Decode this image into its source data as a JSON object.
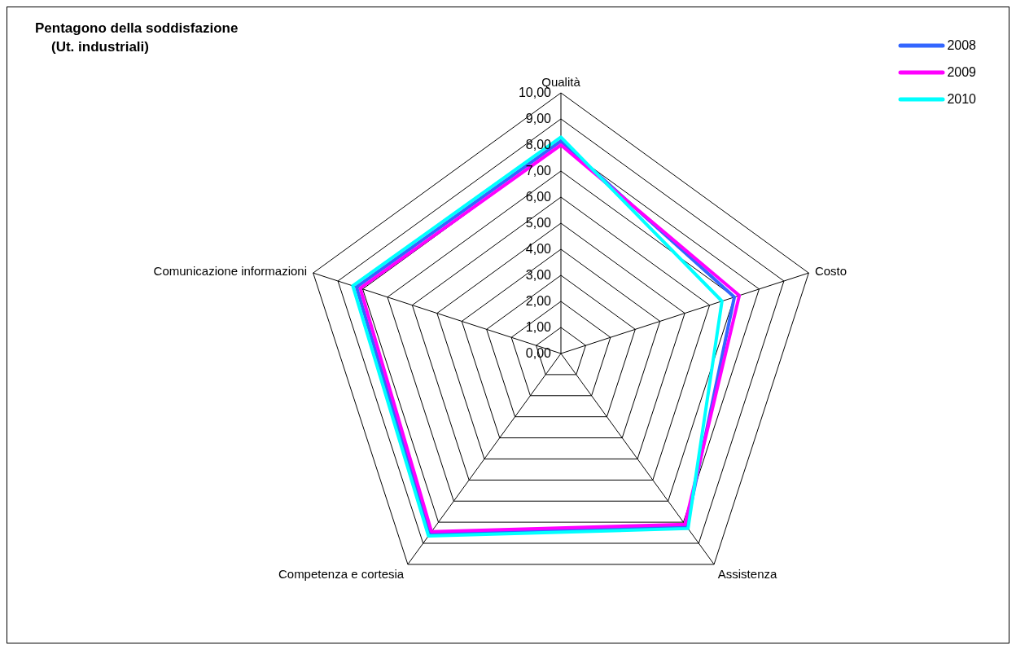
{
  "chart_data": {
    "type": "radar",
    "title": "Pentagono della soddisfazione",
    "subtitle": "(Ut. industriali)",
    "categories": [
      "Qualità",
      "Costo",
      "Assistenza",
      "Competenza e cortesia",
      "Comunicazione informazioni"
    ],
    "ylim": [
      0,
      10
    ],
    "yticks": [
      {
        "value": 0,
        "label": "0,00"
      },
      {
        "value": 1,
        "label": "1,00"
      },
      {
        "value": 2,
        "label": "2,00"
      },
      {
        "value": 3,
        "label": "3,00"
      },
      {
        "value": 4,
        "label": "4,00"
      },
      {
        "value": 5,
        "label": "5,00"
      },
      {
        "value": 6,
        "label": "6,00"
      },
      {
        "value": 7,
        "label": "7,00"
      },
      {
        "value": 8,
        "label": "8,00"
      },
      {
        "value": 9,
        "label": "9,00"
      },
      {
        "value": 10,
        "label": "10,00"
      }
    ],
    "grid": true,
    "legend": "top right",
    "marker": "none",
    "line_style": "solid",
    "series": [
      {
        "name": "2008",
        "color": "#3366ff",
        "values": [
          8.15,
          7.0,
          8.2,
          8.55,
          8.25
        ]
      },
      {
        "name": "2009",
        "color": "#ff00ff",
        "values": [
          8.0,
          7.2,
          8.1,
          8.45,
          8.1
        ]
      },
      {
        "name": "2010",
        "color": "#00ffff",
        "values": [
          8.3,
          6.5,
          8.3,
          8.65,
          8.4
        ]
      }
    ]
  }
}
